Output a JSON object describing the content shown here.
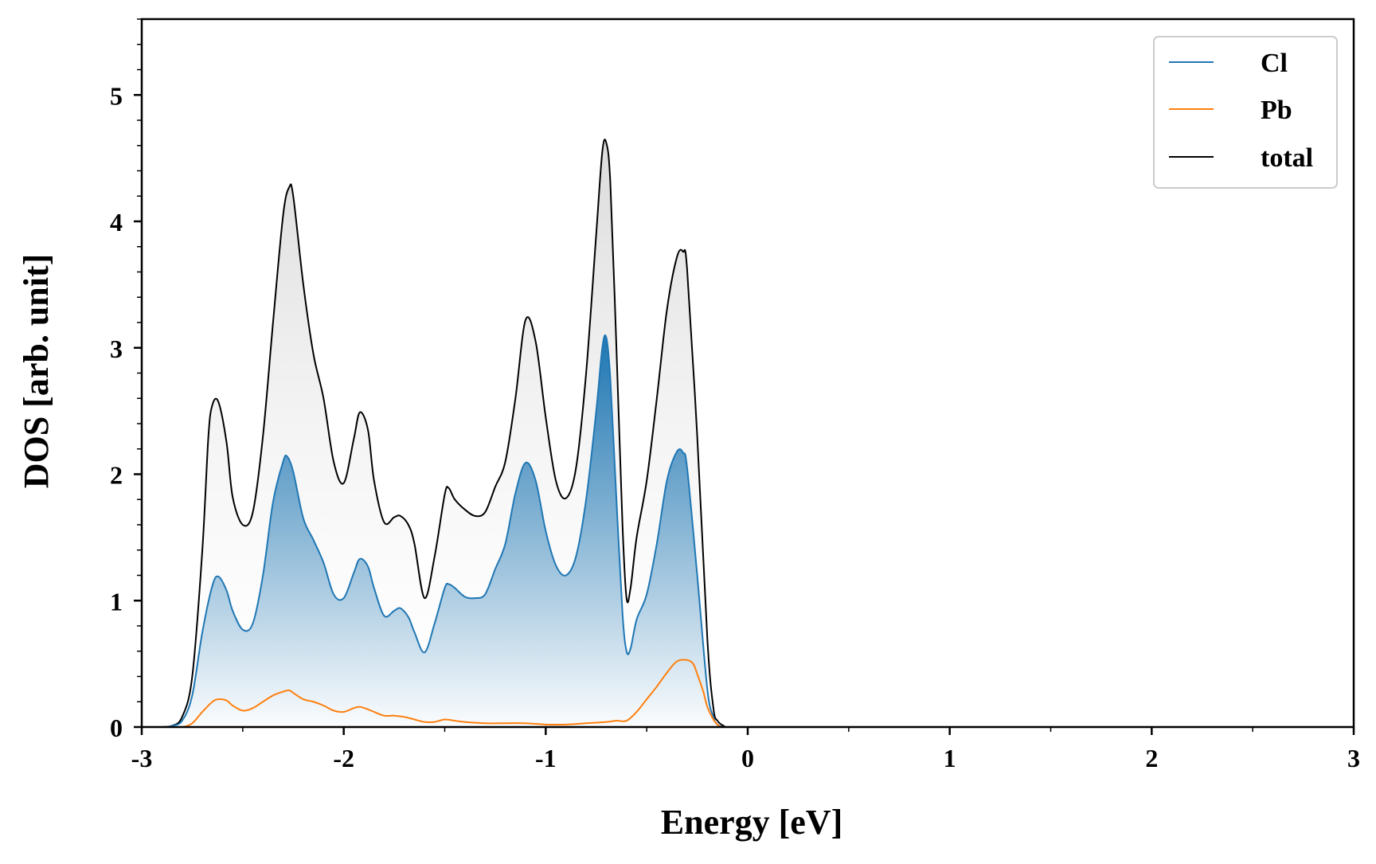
{
  "chart_data": {
    "type": "area",
    "title": "",
    "xlabel": "Energy [eV]",
    "ylabel": "DOS [arb. unit]",
    "xlim": [
      -3,
      3
    ],
    "ylim": [
      0,
      5.6
    ],
    "xticks": [
      -3,
      -2,
      -1,
      0,
      1,
      2,
      3
    ],
    "xtick_labels": [
      "-3",
      "-2",
      "-1",
      "0",
      "1",
      "2",
      "3"
    ],
    "yticks": [
      0,
      1,
      2,
      3,
      4,
      5
    ],
    "ytick_labels": [
      "0",
      "1",
      "2",
      "3",
      "4",
      "5"
    ],
    "grid": false,
    "legend_position": "top-right",
    "colors": {
      "Cl": "#1f77b4",
      "Pb": "#ff7f0e",
      "total": "#000000"
    },
    "series": [
      {
        "name": "Cl",
        "x": [
          -3.0,
          -2.9,
          -2.85,
          -2.8,
          -2.75,
          -2.7,
          -2.65,
          -2.62,
          -2.58,
          -2.55,
          -2.5,
          -2.45,
          -2.4,
          -2.35,
          -2.3,
          -2.28,
          -2.25,
          -2.2,
          -2.15,
          -2.1,
          -2.05,
          -2.0,
          -1.95,
          -1.92,
          -1.88,
          -1.85,
          -1.8,
          -1.75,
          -1.72,
          -1.68,
          -1.65,
          -1.6,
          -1.55,
          -1.5,
          -1.48,
          -1.45,
          -1.4,
          -1.35,
          -1.3,
          -1.25,
          -1.2,
          -1.15,
          -1.1,
          -1.05,
          -1.0,
          -0.95,
          -0.9,
          -0.85,
          -0.8,
          -0.75,
          -0.72,
          -0.7,
          -0.68,
          -0.65,
          -0.62,
          -0.6,
          -0.58,
          -0.55,
          -0.5,
          -0.45,
          -0.4,
          -0.35,
          -0.32,
          -0.3,
          -0.25,
          -0.2,
          -0.17,
          -0.15,
          -0.12,
          -0.1,
          0.0,
          3.0
        ],
        "y": [
          0,
          0.0,
          0.01,
          0.05,
          0.25,
          0.75,
          1.12,
          1.19,
          1.08,
          0.92,
          0.77,
          0.82,
          1.2,
          1.78,
          2.1,
          2.14,
          2.02,
          1.65,
          1.48,
          1.3,
          1.05,
          1.02,
          1.22,
          1.33,
          1.27,
          1.1,
          0.88,
          0.92,
          0.94,
          0.87,
          0.75,
          0.59,
          0.82,
          1.1,
          1.13,
          1.1,
          1.03,
          1.02,
          1.05,
          1.25,
          1.45,
          1.85,
          2.09,
          1.95,
          1.55,
          1.28,
          1.2,
          1.35,
          1.8,
          2.5,
          3.0,
          3.08,
          2.75,
          1.8,
          0.9,
          0.6,
          0.62,
          0.85,
          1.05,
          1.45,
          1.95,
          2.18,
          2.17,
          2.05,
          1.2,
          0.3,
          0.08,
          0.02,
          0.0,
          0.0,
          0.0,
          0.0
        ]
      },
      {
        "name": "Pb",
        "x": [
          -3.0,
          -2.85,
          -2.8,
          -2.75,
          -2.7,
          -2.65,
          -2.62,
          -2.58,
          -2.55,
          -2.5,
          -2.45,
          -2.4,
          -2.35,
          -2.3,
          -2.27,
          -2.25,
          -2.2,
          -2.15,
          -2.1,
          -2.05,
          -2.0,
          -1.95,
          -1.92,
          -1.88,
          -1.85,
          -1.8,
          -1.75,
          -1.7,
          -1.65,
          -1.6,
          -1.55,
          -1.5,
          -1.45,
          -1.4,
          -1.3,
          -1.2,
          -1.1,
          -1.0,
          -0.9,
          -0.8,
          -0.7,
          -0.65,
          -0.6,
          -0.55,
          -0.5,
          -0.45,
          -0.4,
          -0.35,
          -0.3,
          -0.27,
          -0.25,
          -0.22,
          -0.2,
          -0.17,
          -0.15,
          -0.12,
          0.0,
          3.0
        ],
        "y": [
          0,
          0.0,
          0.0,
          0.03,
          0.12,
          0.2,
          0.22,
          0.21,
          0.17,
          0.13,
          0.15,
          0.2,
          0.25,
          0.28,
          0.29,
          0.27,
          0.22,
          0.2,
          0.17,
          0.13,
          0.12,
          0.15,
          0.16,
          0.14,
          0.12,
          0.09,
          0.09,
          0.08,
          0.06,
          0.04,
          0.04,
          0.06,
          0.05,
          0.04,
          0.03,
          0.03,
          0.03,
          0.02,
          0.02,
          0.03,
          0.04,
          0.05,
          0.05,
          0.12,
          0.22,
          0.32,
          0.43,
          0.52,
          0.53,
          0.5,
          0.42,
          0.28,
          0.16,
          0.06,
          0.02,
          0.0,
          0.0,
          0.0
        ]
      },
      {
        "name": "total",
        "x": [
          -3.0,
          -2.9,
          -2.85,
          -2.8,
          -2.75,
          -2.7,
          -2.67,
          -2.65,
          -2.62,
          -2.58,
          -2.55,
          -2.5,
          -2.45,
          -2.4,
          -2.35,
          -2.3,
          -2.27,
          -2.25,
          -2.2,
          -2.15,
          -2.1,
          -2.05,
          -2.0,
          -1.95,
          -1.92,
          -1.88,
          -1.85,
          -1.8,
          -1.75,
          -1.72,
          -1.68,
          -1.65,
          -1.6,
          -1.55,
          -1.5,
          -1.48,
          -1.45,
          -1.4,
          -1.35,
          -1.3,
          -1.25,
          -1.2,
          -1.15,
          -1.1,
          -1.05,
          -1.0,
          -0.95,
          -0.9,
          -0.85,
          -0.8,
          -0.75,
          -0.72,
          -0.7,
          -0.68,
          -0.65,
          -0.62,
          -0.6,
          -0.58,
          -0.55,
          -0.5,
          -0.45,
          -0.4,
          -0.35,
          -0.32,
          -0.3,
          -0.25,
          -0.2,
          -0.17,
          -0.15,
          -0.12,
          -0.1,
          0.0,
          3.0
        ],
        "y": [
          0,
          0.0,
          0.01,
          0.08,
          0.4,
          1.4,
          2.3,
          2.55,
          2.57,
          2.25,
          1.82,
          1.6,
          1.7,
          2.3,
          3.2,
          4.05,
          4.27,
          4.2,
          3.5,
          2.95,
          2.6,
          2.1,
          1.93,
          2.28,
          2.49,
          2.35,
          1.95,
          1.62,
          1.66,
          1.67,
          1.6,
          1.45,
          1.02,
          1.35,
          1.84,
          1.89,
          1.8,
          1.72,
          1.67,
          1.7,
          1.9,
          2.1,
          2.6,
          3.22,
          3.05,
          2.45,
          1.95,
          1.81,
          2.05,
          2.8,
          3.9,
          4.55,
          4.62,
          4.3,
          3.0,
          1.6,
          1.02,
          1.1,
          1.5,
          1.95,
          2.6,
          3.3,
          3.72,
          3.76,
          3.62,
          2.3,
          0.7,
          0.15,
          0.05,
          0.01,
          0.0,
          0.0,
          0.0
        ]
      }
    ]
  }
}
